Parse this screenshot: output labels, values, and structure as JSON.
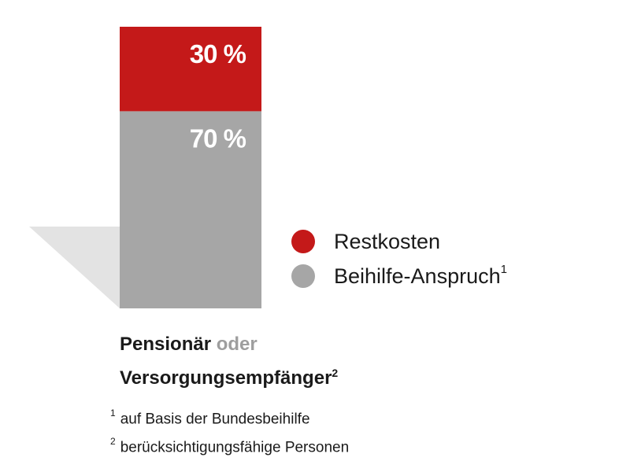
{
  "colors": {
    "restkosten": "#c41919",
    "beihilfe": "#a6a6a6",
    "shadow": "#e3e3e3",
    "oder": "#9e9e9e"
  },
  "chart_data": {
    "type": "bar",
    "stacked": true,
    "categories": [
      "Pensionär oder Versorgungsempfänger"
    ],
    "series": [
      {
        "name": "Beihilfe-Anspruch",
        "values": [
          70
        ],
        "label": "70 %"
      },
      {
        "name": "Restkosten",
        "values": [
          30
        ],
        "label": "30 %"
      }
    ],
    "ylim": [
      0,
      100
    ],
    "grid": false,
    "legend_position": "right"
  },
  "legend": {
    "items": [
      {
        "label": "Restkosten",
        "sup": ""
      },
      {
        "label": "Beihilfe-Anspruch",
        "sup": "1"
      }
    ]
  },
  "caption": {
    "line1_bold": "Pensionär",
    "line1_muted": "oder",
    "line2": "Versorgungsempfänger",
    "line2_sup": "2"
  },
  "footnotes": [
    {
      "marker": "1",
      "text": "auf Basis der Bundesbeihilfe"
    },
    {
      "marker": "2",
      "text": "berücksichtigungsfähige Personen"
    }
  ]
}
